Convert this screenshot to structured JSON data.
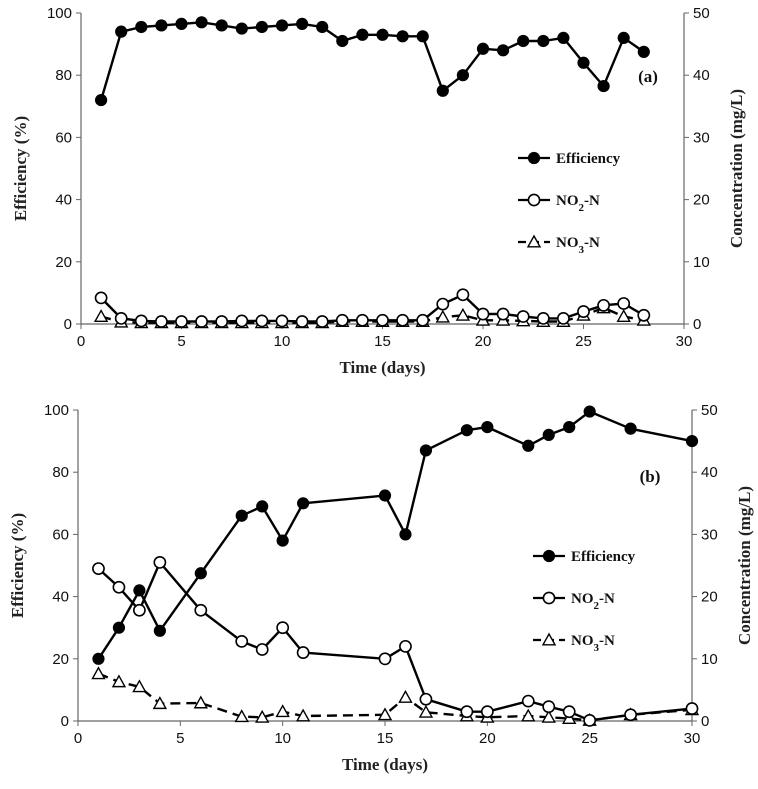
{
  "chart_data": [
    {
      "type": "line",
      "panel_label": "(a)",
      "xlabel": "Time (days)",
      "ylabel": "Efficiency (%)",
      "y2label": "Concentration (mg/L)",
      "xlim": [
        0,
        30
      ],
      "ylim": [
        0,
        100
      ],
      "y2lim": [
        0,
        50
      ],
      "x_ticks": [
        0,
        5,
        10,
        15,
        20,
        25,
        30
      ],
      "y_ticks": [
        0,
        20,
        40,
        60,
        80,
        100
      ],
      "y2_ticks": [
        0,
        10,
        20,
        30,
        40,
        50
      ],
      "legend_position": "right",
      "series": [
        {
          "name": "Efficiency",
          "axis": "left",
          "marker": "filled-circle",
          "line": "solid",
          "x": [
            1,
            2,
            3,
            4,
            5,
            6,
            7,
            8,
            9,
            10,
            11,
            12,
            13,
            14,
            15,
            16,
            17,
            18,
            19,
            20,
            21,
            22,
            23,
            24,
            25,
            26,
            27,
            28
          ],
          "values": [
            72,
            94,
            95.5,
            96,
            96.5,
            97,
            96,
            95,
            95.5,
            96,
            96.5,
            95.5,
            91,
            93,
            93,
            92.5,
            92.5,
            75,
            80,
            88.5,
            88,
            91,
            91,
            92,
            84,
            76.5,
            92,
            87.5
          ]
        },
        {
          "name": "NO2-N",
          "name_main": "NO",
          "name_sub": "2",
          "name_suffix": "-N",
          "axis": "right",
          "marker": "open-circle",
          "line": "solid",
          "x": [
            1,
            2,
            3,
            4,
            5,
            6,
            7,
            8,
            9,
            10,
            11,
            12,
            13,
            14,
            15,
            16,
            17,
            18,
            19,
            20,
            21,
            22,
            23,
            24,
            25,
            26,
            27,
            28
          ],
          "values": [
            4.2,
            0.9,
            0.5,
            0.4,
            0.4,
            0.4,
            0.4,
            0.5,
            0.5,
            0.5,
            0.4,
            0.4,
            0.6,
            0.6,
            0.6,
            0.6,
            0.6,
            3.2,
            4.7,
            1.6,
            1.6,
            1.2,
            0.9,
            0.9,
            2.0,
            3.0,
            3.3,
            1.4
          ]
        },
        {
          "name": "NO3-N",
          "name_main": "NO",
          "name_sub": "3",
          "name_suffix": "-N",
          "axis": "right",
          "marker": "open-triangle",
          "line": "dashed",
          "x": [
            1,
            2,
            3,
            4,
            5,
            6,
            7,
            8,
            9,
            10,
            11,
            12,
            13,
            14,
            15,
            16,
            17,
            18,
            19,
            20,
            21,
            22,
            23,
            24,
            25,
            26,
            27,
            28
          ],
          "values": [
            1.2,
            0.3,
            0.2,
            0.2,
            0.2,
            0.2,
            0.2,
            0.2,
            0.2,
            0.2,
            0.2,
            0.2,
            0.4,
            0.4,
            0.4,
            0.4,
            0.4,
            1.1,
            1.4,
            0.6,
            0.6,
            0.5,
            0.4,
            0.4,
            1.4,
            2.6,
            1.2,
            0.6
          ]
        }
      ]
    },
    {
      "type": "line",
      "panel_label": "(b)",
      "xlabel": "Time (days)",
      "ylabel": "Efficiency (%)",
      "y2label": "Concentration (mg/L)",
      "xlim": [
        0,
        30
      ],
      "ylim": [
        0,
        100
      ],
      "y2lim": [
        0,
        50
      ],
      "x_ticks": [
        0,
        5,
        10,
        15,
        20,
        25,
        30
      ],
      "y_ticks": [
        0,
        20,
        40,
        60,
        80,
        100
      ],
      "y2_ticks": [
        0,
        10,
        20,
        30,
        40,
        50
      ],
      "legend_position": "right",
      "series": [
        {
          "name": "Efficiency",
          "axis": "left",
          "marker": "filled-circle",
          "line": "solid",
          "x": [
            1,
            2,
            3,
            4,
            6,
            8,
            9,
            10,
            11,
            15,
            16,
            17,
            19,
            20,
            22,
            23,
            24,
            25,
            27,
            30
          ],
          "values": [
            20,
            30,
            42,
            29,
            47.5,
            66,
            69,
            58,
            70,
            72.5,
            60,
            87,
            93.5,
            94.5,
            88.5,
            92,
            94.5,
            99.5,
            94,
            90
          ]
        },
        {
          "name": "NO2-N",
          "name_main": "NO",
          "name_sub": "2",
          "name_suffix": "-N",
          "axis": "right",
          "marker": "open-circle",
          "line": "solid",
          "x": [
            1,
            2,
            3,
            4,
            6,
            8,
            9,
            10,
            11,
            15,
            16,
            17,
            19,
            20,
            22,
            23,
            24,
            25,
            27,
            30
          ],
          "values": [
            24.5,
            21.5,
            17.8,
            25.5,
            17.8,
            12.8,
            11.5,
            15,
            11,
            10,
            12,
            3.5,
            1.5,
            1.5,
            3.2,
            2.3,
            1.5,
            0.1,
            1.0,
            2.0
          ]
        },
        {
          "name": "NO3-N",
          "name_main": "NO",
          "name_sub": "3",
          "name_suffix": "-N",
          "axis": "right",
          "marker": "open-triangle",
          "line": "dashed",
          "x": [
            1,
            2,
            3,
            4,
            6,
            8,
            9,
            10,
            11,
            15,
            16,
            17,
            19,
            20,
            22,
            23,
            24,
            25,
            27,
            30
          ],
          "values": [
            7.6,
            6.3,
            5.5,
            2.8,
            2.9,
            0.7,
            0.6,
            1.5,
            0.8,
            1.0,
            3.8,
            1.4,
            0.8,
            0.6,
            0.8,
            0.6,
            0.4,
            0.1,
            1.0,
            1.8
          ]
        }
      ]
    }
  ]
}
